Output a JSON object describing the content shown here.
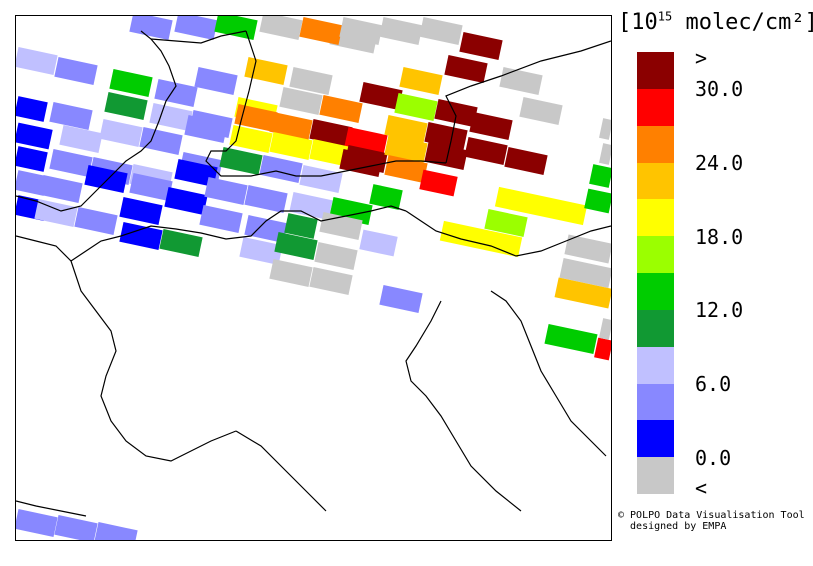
{
  "legend": {
    "unit_prefix": "[10",
    "unit_exponent": "15",
    "unit_suffix": " molec/cm²]",
    "colors": [
      "#8b0000",
      "#ff0000",
      "#ff8000",
      "#ffc400",
      "#ffff00",
      "#9bff00",
      "#00cc00",
      "#119933",
      "#c0c0ff",
      "#8888ff",
      "#0000ff",
      "#c8c8c8"
    ],
    "labels": [
      ">",
      "30.0",
      "24.0",
      "18.0",
      "12.0",
      "6.0",
      "0.0",
      "<"
    ]
  },
  "credit": {
    "line1": "© POLPO Data Visualisation Tool",
    "line2": "  designed by EMPA"
  }
}
